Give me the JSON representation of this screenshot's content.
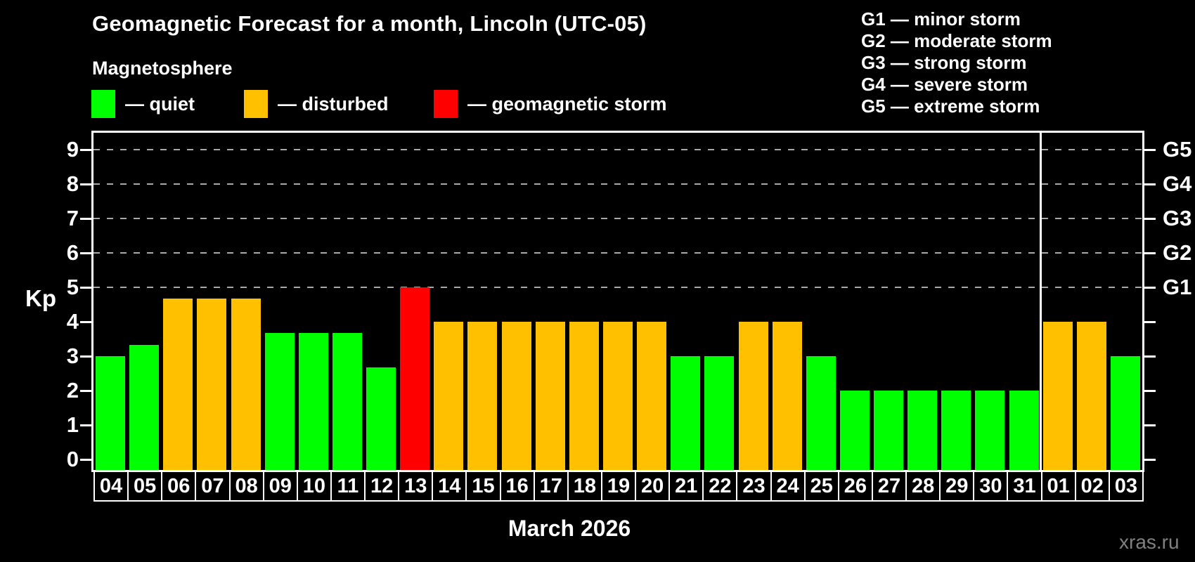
{
  "header": {
    "title": "Geomagnetic Forecast for a month, Lincoln (UTC-05)",
    "subtitle": "Magnetosphere"
  },
  "magnetosphere_legend": [
    {
      "key": "quiet",
      "label": "— quiet",
      "color": "#00ff00"
    },
    {
      "key": "disturbed",
      "label": "— disturbed",
      "color": "#ffc000"
    },
    {
      "key": "storm",
      "label": "— geomagnetic storm",
      "color": "#ff0000"
    }
  ],
  "storm_scale_legend": [
    "G1 — minor storm",
    "G2 — moderate storm",
    "G3 — strong storm",
    "G4 — severe storm",
    "G5 — extreme storm"
  ],
  "chart_data": {
    "type": "bar",
    "title": "Geomagnetic Forecast for a month, Lincoln (UTC-05)",
    "xlabel": "March 2026",
    "ylabel": "Kp",
    "ylim": [
      0,
      9
    ],
    "y_ticks": [
      0,
      1,
      2,
      3,
      4,
      5,
      6,
      7,
      8,
      9
    ],
    "gridlines_at_kp": [
      5,
      6,
      7,
      8,
      9
    ],
    "grid": true,
    "legend_position": "top",
    "right_axis": [
      {
        "label": "G1",
        "kp": 5
      },
      {
        "label": "G2",
        "kp": 6
      },
      {
        "label": "G3",
        "kp": 7
      },
      {
        "label": "G4",
        "kp": 8
      },
      {
        "label": "G5",
        "kp": 9
      }
    ],
    "categories": [
      "04",
      "05",
      "06",
      "07",
      "08",
      "09",
      "10",
      "11",
      "12",
      "13",
      "14",
      "15",
      "16",
      "17",
      "18",
      "19",
      "20",
      "21",
      "22",
      "23",
      "24",
      "25",
      "26",
      "27",
      "28",
      "29",
      "30",
      "31",
      "01",
      "02",
      "03"
    ],
    "values": [
      3.0,
      3.33,
      4.67,
      4.67,
      4.67,
      3.67,
      3.67,
      3.67,
      2.67,
      5.0,
      4.0,
      4.0,
      4.0,
      4.0,
      4.0,
      4.0,
      4.0,
      3.0,
      3.0,
      4.0,
      4.0,
      3.0,
      2.0,
      2.0,
      2.0,
      2.0,
      2.0,
      2.0,
      4.0,
      4.0,
      3.0
    ],
    "statuses": [
      "quiet",
      "quiet",
      "disturbed",
      "disturbed",
      "disturbed",
      "quiet",
      "quiet",
      "quiet",
      "quiet",
      "storm",
      "disturbed",
      "disturbed",
      "disturbed",
      "disturbed",
      "disturbed",
      "disturbed",
      "disturbed",
      "quiet",
      "quiet",
      "disturbed",
      "disturbed",
      "quiet",
      "quiet",
      "quiet",
      "quiet",
      "quiet",
      "quiet",
      "quiet",
      "disturbed",
      "disturbed",
      "quiet"
    ],
    "status_colors": {
      "quiet": "#00ff00",
      "disturbed": "#ffc000",
      "storm": "#ff0000"
    },
    "month_separator_after_index": 27
  },
  "watermark": "xras.ru"
}
